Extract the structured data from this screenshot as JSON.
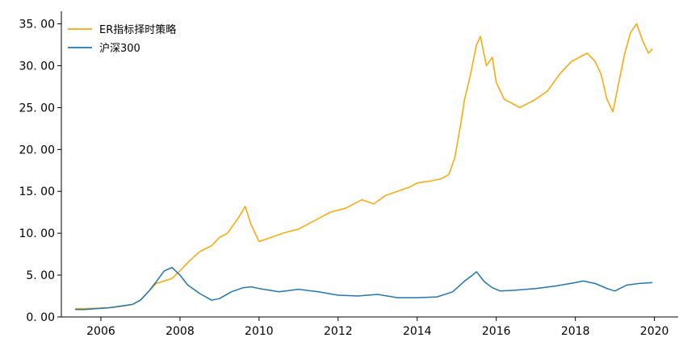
{
  "chart_data": {
    "type": "line",
    "title": "",
    "xlabel": "",
    "ylabel": "",
    "xlim": [
      2005.0,
      2020.6
    ],
    "ylim": [
      0,
      36.5
    ],
    "x_ticks": [
      2006,
      2008,
      2010,
      2012,
      2014,
      2016,
      2018,
      2020
    ],
    "x_tick_labels": [
      "2006",
      "2008",
      "2010",
      "2012",
      "2014",
      "2016",
      "2018",
      "2020"
    ],
    "y_ticks": [
      0,
      5,
      10,
      15,
      20,
      25,
      30,
      35
    ],
    "y_tick_labels": [
      "0. 00",
      "5. 00",
      "10. 00",
      "15. 00",
      "20. 00",
      "25. 00",
      "30. 00",
      "35. 00"
    ],
    "grid": false,
    "legend_position": "top-left",
    "series": [
      {
        "name": "ER指标择时策略",
        "color": "#FFA500",
        "x": [
          2005.35,
          2005.6,
          2005.9,
          2006.2,
          2006.5,
          2006.8,
          2007.0,
          2007.2,
          2007.4,
          2007.6,
          2007.8,
          2008.0,
          2008.2,
          2008.5,
          2008.8,
          2009.0,
          2009.2,
          2009.5,
          2009.65,
          2009.8,
          2010.0,
          2010.3,
          2010.6,
          2011.0,
          2011.4,
          2011.8,
          2012.2,
          2012.6,
          2012.9,
          2013.2,
          2013.5,
          2013.8,
          2014.0,
          2014.3,
          2014.6,
          2014.8,
          2014.95,
          2015.1,
          2015.2,
          2015.35,
          2015.5,
          2015.6,
          2015.75,
          2015.9,
          2016.0,
          2016.2,
          2016.4,
          2016.6,
          2016.8,
          2017.0,
          2017.3,
          2017.6,
          2017.9,
          2018.1,
          2018.3,
          2018.5,
          2018.65,
          2018.8,
          2018.95,
          2019.1,
          2019.25,
          2019.4,
          2019.55,
          2019.7,
          2019.85,
          2019.95
        ],
        "values": [
          1.0,
          1.0,
          1.05,
          1.1,
          1.25,
          1.5,
          2.0,
          3.0,
          4.0,
          4.3,
          4.6,
          5.5,
          6.5,
          7.8,
          8.5,
          9.5,
          10.0,
          12.0,
          13.2,
          11.0,
          9.0,
          9.5,
          10.0,
          10.5,
          11.5,
          12.5,
          13.0,
          14.0,
          13.5,
          14.5,
          15.0,
          15.5,
          16.0,
          16.2,
          16.5,
          17.0,
          19.0,
          23.0,
          26.0,
          29.0,
          32.5,
          33.5,
          30.0,
          31.0,
          28.0,
          26.0,
          25.5,
          25.0,
          25.5,
          26.0,
          27.0,
          29.0,
          30.5,
          31.0,
          31.5,
          30.5,
          29.0,
          26.0,
          24.5,
          28.0,
          31.5,
          34.0,
          35.0,
          33.0,
          31.5,
          32.0
        ]
      },
      {
        "name": "沪深300",
        "color": "#1F77B4",
        "x": [
          2005.35,
          2005.6,
          2005.9,
          2006.2,
          2006.5,
          2006.8,
          2007.0,
          2007.2,
          2007.4,
          2007.6,
          2007.8,
          2008.0,
          2008.2,
          2008.5,
          2008.8,
          2009.0,
          2009.3,
          2009.6,
          2009.8,
          2010.0,
          2010.5,
          2011.0,
          2011.5,
          2012.0,
          2012.5,
          2013.0,
          2013.5,
          2014.0,
          2014.5,
          2014.9,
          2015.2,
          2015.4,
          2015.5,
          2015.7,
          2015.9,
          2016.1,
          2016.5,
          2017.0,
          2017.5,
          2018.0,
          2018.2,
          2018.5,
          2018.8,
          2019.0,
          2019.3,
          2019.6,
          2019.95
        ],
        "values": [
          0.9,
          0.9,
          1.0,
          1.1,
          1.3,
          1.5,
          2.0,
          3.0,
          4.2,
          5.5,
          5.9,
          5.0,
          3.8,
          2.8,
          2.0,
          2.2,
          3.0,
          3.5,
          3.6,
          3.4,
          3.0,
          3.3,
          3.0,
          2.6,
          2.5,
          2.7,
          2.3,
          2.3,
          2.4,
          3.0,
          4.3,
          5.0,
          5.4,
          4.2,
          3.5,
          3.1,
          3.2,
          3.4,
          3.7,
          4.1,
          4.3,
          4.0,
          3.4,
          3.1,
          3.8,
          4.0,
          4.1
        ]
      }
    ]
  }
}
